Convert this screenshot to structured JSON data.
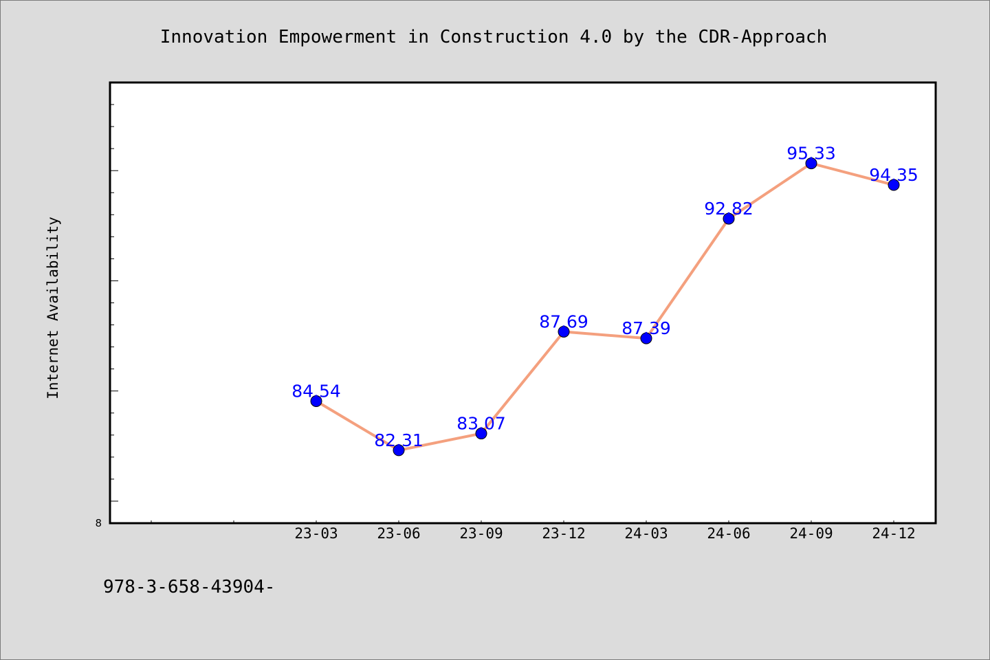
{
  "chart_data": {
    "type": "line",
    "title": "Innovation Empowerment in Construction 4.0 by the CDR-Approach",
    "xlabel": "",
    "ylabel": "Internet Availability",
    "categories": [
      "23-03",
      "23-06",
      "23-09",
      "23-12",
      "24-03",
      "24-06",
      "24-09",
      "24-12"
    ],
    "series": [
      {
        "values": [
          84.54,
          82.31,
          83.07,
          87.69,
          87.39,
          92.82,
          95.33,
          94.35
        ],
        "data_labels": [
          "84.54",
          "82.31",
          "83.07",
          "87.69",
          "87.39",
          "92.82",
          "95.33",
          "94.35"
        ]
      }
    ],
    "ylim": [
      79,
      99
    ],
    "y_tick_label": "8",
    "grid": false,
    "legend": "none",
    "colors": {
      "line": "#f4a07e",
      "marker": "#0000ff",
      "label": "#0000ff",
      "plot_background": "#ffffff",
      "page_background": "#dcdcdc"
    }
  },
  "footer_text": "978-3-658-43904-"
}
